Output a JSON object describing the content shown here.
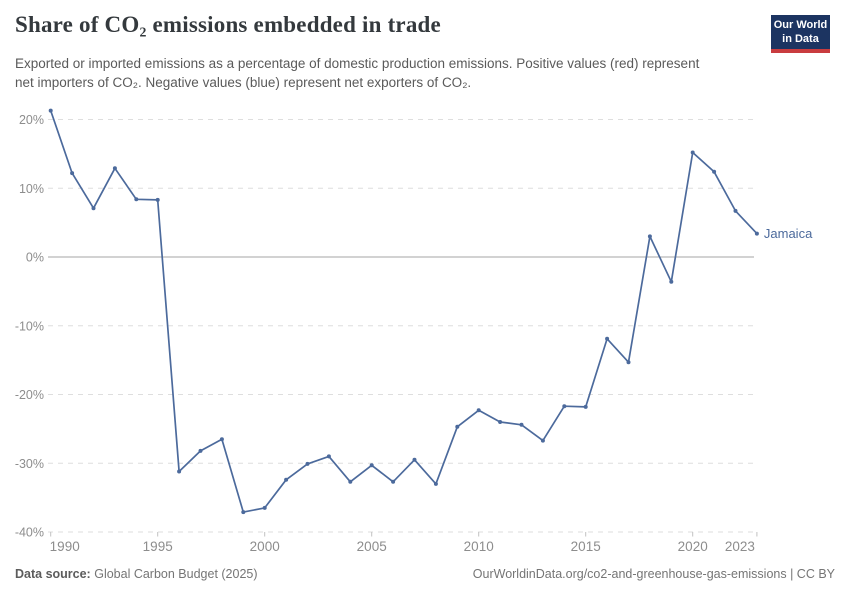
{
  "header": {
    "title": "Share of CO₂ emissions embedded in trade",
    "subtitle": "Exported or imported emissions as a percentage of domestic production emissions. Positive values (red) represent net importers of CO₂. Negative values (blue) represent net exporters of CO₂.",
    "logo_line1": "Our World",
    "logo_line2": "in Data",
    "logo_bg_color": "#1c3461",
    "logo_accent_color": "#c93c3f"
  },
  "chart_data": {
    "type": "line",
    "title": "Share of CO₂ emissions embedded in trade",
    "entity": "Jamaica",
    "line_color": "#4c6a9c",
    "grid": true,
    "legend_position": "end-of-line",
    "xlim": [
      1990,
      2023
    ],
    "ylim": [
      -40,
      22
    ],
    "y_tick_format": "percent",
    "y_ticks": [
      20,
      10,
      0,
      -10,
      -20,
      -30,
      -40
    ],
    "x_ticks": [
      1990,
      1995,
      2000,
      2005,
      2010,
      2015,
      2020,
      2023
    ],
    "x": [
      1990,
      1991,
      1992,
      1993,
      1994,
      1995,
      1996,
      1997,
      1998,
      1999,
      2000,
      2001,
      2002,
      2003,
      2004,
      2005,
      2006,
      2007,
      2008,
      2009,
      2010,
      2011,
      2012,
      2013,
      2014,
      2015,
      2016,
      2017,
      2018,
      2019,
      2020,
      2021,
      2022,
      2023
    ],
    "values": [
      21.3,
      12.2,
      7.1,
      12.9,
      8.4,
      8.3,
      -31.2,
      -28.2,
      -26.5,
      -37.1,
      -36.5,
      -32.4,
      -30.1,
      -29.0,
      -32.7,
      -30.3,
      -32.7,
      -29.5,
      -33.0,
      -24.7,
      -22.3,
      -24.0,
      -24.4,
      -26.7,
      -21.7,
      -21.8,
      -11.9,
      -15.3,
      3.0,
      -3.6,
      15.2,
      12.4,
      6.7,
      3.4
    ]
  },
  "footer": {
    "source_label": "Data source:",
    "source_value": "Global Carbon Budget (2025)",
    "license": "OurWorldinData.org/co2-and-greenhouse-gas-emissions | CC BY"
  }
}
